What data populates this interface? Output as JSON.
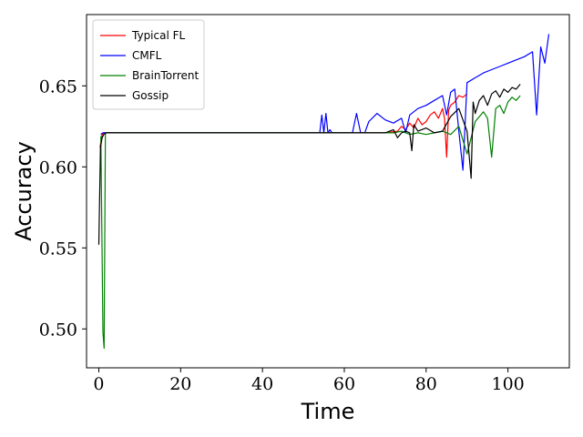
{
  "chart_data": {
    "type": "line",
    "xlabel": "Time",
    "ylabel": "Accuracy",
    "xlim": [
      -3,
      115
    ],
    "ylim": [
      0.476,
      0.694
    ],
    "xticks": [
      0,
      20,
      40,
      60,
      80,
      100
    ],
    "yticks": [
      0.5,
      0.55,
      0.6,
      0.65
    ],
    "xtick_labels": [
      "0",
      "20",
      "40",
      "60",
      "80",
      "100"
    ],
    "ytick_labels": [
      "0.50",
      "0.55",
      "0.60",
      "0.65"
    ],
    "grid": false,
    "legend_position": "top-left",
    "series": [
      {
        "name": "Typical FL",
        "color": "#ff0000",
        "x": [
          0.3,
          0.8,
          1.2,
          1.8,
          5,
          20,
          40,
          60,
          70,
          73,
          74,
          75,
          76,
          77,
          78,
          79,
          80,
          81,
          82,
          83,
          84,
          84.5,
          85,
          85.5,
          86,
          87,
          88,
          89,
          90
        ],
        "y": [
          0.612,
          0.62,
          0.621,
          0.621,
          0.621,
          0.621,
          0.621,
          0.621,
          0.621,
          0.622,
          0.625,
          0.623,
          0.627,
          0.624,
          0.63,
          0.626,
          0.628,
          0.632,
          0.634,
          0.63,
          0.636,
          0.63,
          0.606,
          0.635,
          0.638,
          0.64,
          0.644,
          0.643,
          0.645
        ]
      },
      {
        "name": "CMFL",
        "color": "#0000ff",
        "x": [
          0.5,
          1.0,
          1.5,
          2,
          10,
          30,
          54,
          54.5,
          55,
          55.5,
          56,
          56.5,
          57,
          60,
          62,
          63,
          64,
          65,
          66,
          68,
          70,
          72,
          74,
          75,
          76,
          78,
          80,
          82,
          84,
          85,
          86,
          87,
          88,
          89,
          90,
          92,
          94,
          96,
          98,
          100,
          102,
          104,
          106,
          107,
          108,
          109,
          110
        ],
        "y": [
          0.62,
          0.621,
          0.621,
          0.621,
          0.621,
          0.621,
          0.621,
          0.632,
          0.621,
          0.633,
          0.621,
          0.623,
          0.621,
          0.621,
          0.621,
          0.633,
          0.621,
          0.621,
          0.628,
          0.633,
          0.629,
          0.627,
          0.63,
          0.621,
          0.632,
          0.636,
          0.638,
          0.641,
          0.644,
          0.632,
          0.646,
          0.648,
          0.622,
          0.598,
          0.652,
          0.655,
          0.658,
          0.66,
          0.662,
          0.664,
          0.666,
          0.668,
          0.671,
          0.632,
          0.674,
          0.664,
          0.682
        ]
      },
      {
        "name": "BrainTorrent",
        "color": "#008000",
        "x": [
          0.5,
          1.0,
          1.3,
          1.6,
          2,
          10,
          30,
          50,
          70,
          72,
          74,
          76,
          78,
          80,
          82,
          84,
          86,
          88,
          90,
          92,
          94,
          95,
          96,
          97,
          98,
          99,
          100,
          101,
          102,
          103
        ],
        "y": [
          0.619,
          0.498,
          0.488,
          0.621,
          0.621,
          0.621,
          0.621,
          0.621,
          0.621,
          0.621,
          0.622,
          0.62,
          0.621,
          0.62,
          0.621,
          0.622,
          0.62,
          0.625,
          0.608,
          0.628,
          0.634,
          0.63,
          0.606,
          0.636,
          0.638,
          0.633,
          0.64,
          0.643,
          0.641,
          0.644
        ]
      },
      {
        "name": "Gossip",
        "color": "#000000",
        "x": [
          0,
          0.4,
          0.8,
          1.2,
          1.8,
          5,
          20,
          40,
          60,
          70,
          72,
          73,
          74,
          75,
          76,
          76.5,
          77,
          78,
          80,
          82,
          84,
          86,
          88,
          90,
          91,
          91.5,
          92,
          93,
          94,
          95,
          96,
          97,
          98,
          99,
          100,
          101,
          102,
          103
        ],
        "y": [
          0.552,
          0.612,
          0.618,
          0.62,
          0.621,
          0.621,
          0.621,
          0.621,
          0.621,
          0.621,
          0.623,
          0.618,
          0.621,
          0.622,
          0.621,
          0.61,
          0.626,
          0.622,
          0.624,
          0.621,
          0.622,
          0.631,
          0.636,
          0.622,
          0.593,
          0.64,
          0.633,
          0.641,
          0.644,
          0.638,
          0.645,
          0.647,
          0.643,
          0.648,
          0.646,
          0.649,
          0.648,
          0.651
        ]
      }
    ]
  }
}
